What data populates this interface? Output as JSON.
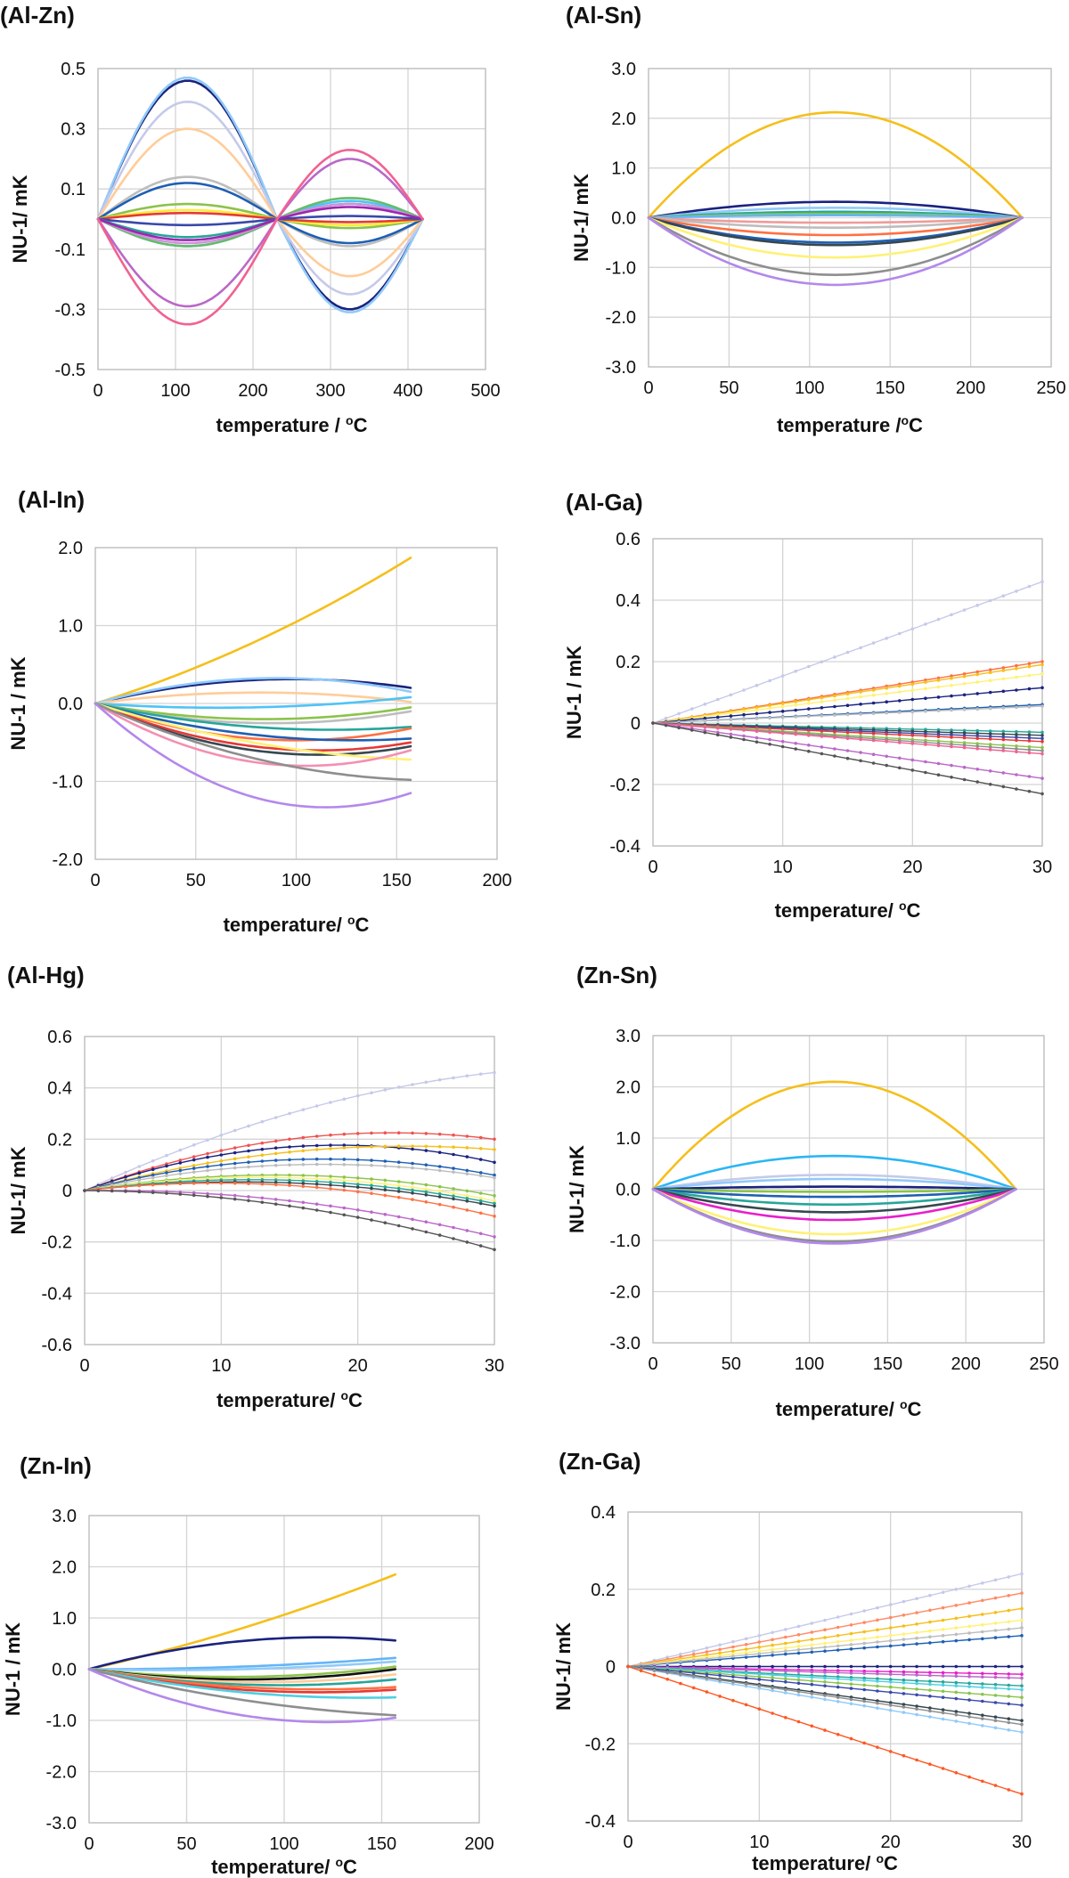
{
  "chart_data": [
    {
      "type": "line",
      "title": "(Al-Zn)",
      "xlabel": "temperature / ",
      "xlabel_unit": "C",
      "ylabel": "NU-1/ mK",
      "xlim": [
        0,
        500
      ],
      "ylim": [
        -0.5,
        0.5
      ],
      "xticks": [
        0,
        100,
        200,
        300,
        400,
        500
      ],
      "yticks": [
        -0.5,
        -0.3,
        -0.1,
        0.1,
        0.3,
        0.5
      ],
      "xtick_labels": [
        "0",
        "100",
        "200",
        "300",
        "400",
        "500"
      ],
      "ytick_labels": [
        "-0.5",
        "-0.3",
        "-0.1",
        "0.1",
        "0.3",
        "0.5"
      ],
      "shape": "double",
      "x_end": 419,
      "x_mid": 231,
      "series": [
        {
          "name": "s1",
          "color": "#1a237e",
          "peak1": 0.46,
          "peak2": -0.3
        },
        {
          "name": "s2",
          "color": "#90caf9",
          "peak1": 0.47,
          "peak2": -0.31
        },
        {
          "name": "s3",
          "color": "#c5cae9",
          "peak1": 0.39,
          "peak2": -0.25
        },
        {
          "name": "s4",
          "color": "#ffcc99",
          "peak1": 0.3,
          "peak2": -0.19
        },
        {
          "name": "s5",
          "color": "#bdbdbd",
          "peak1": 0.14,
          "peak2": -0.09
        },
        {
          "name": "s6",
          "color": "#1e5fb3",
          "peak1": 0.12,
          "peak2": -0.08
        },
        {
          "name": "s7",
          "color": "#8bc34a",
          "peak1": 0.05,
          "peak2": -0.03
        },
        {
          "name": "s8",
          "color": "#ffeb3b",
          "peak1": 0.03,
          "peak2": -0.02
        },
        {
          "name": "s9",
          "color": "#e53935",
          "peak1": 0.02,
          "peak2": -0.01
        },
        {
          "name": "s10",
          "color": "#3949ab",
          "peak1": -0.02,
          "peak2": 0.01
        },
        {
          "name": "s11",
          "color": "#26a69a",
          "peak1": -0.06,
          "peak2": 0.05
        },
        {
          "name": "s12",
          "color": "#4fc3f7",
          "peak1": -0.09,
          "peak2": 0.06
        },
        {
          "name": "s13",
          "color": "#66bb6a",
          "peak1": -0.09,
          "peak2": 0.07
        },
        {
          "name": "s14",
          "color": "#ce93d8",
          "peak1": -0.08,
          "peak2": 0.05
        },
        {
          "name": "s15",
          "color": "#9c27b0",
          "peak1": -0.07,
          "peak2": 0.04
        },
        {
          "name": "s16",
          "color": "#ba68c8",
          "peak1": -0.29,
          "peak2": 0.2
        },
        {
          "name": "s17",
          "color": "#f06292",
          "peak1": -0.35,
          "peak2": 0.23
        }
      ]
    },
    {
      "type": "line",
      "title": "(Al-Sn)",
      "xlabel": "temperature /",
      "xlabel_unit": "C",
      "ylabel": "NU-1/ mK",
      "xlim": [
        0,
        250
      ],
      "ylim": [
        -3.0,
        3.0
      ],
      "xticks": [
        0,
        50,
        100,
        150,
        200,
        250
      ],
      "yticks": [
        -3,
        -2,
        -1,
        0,
        1,
        2,
        3
      ],
      "xtick_labels": [
        "0",
        "50",
        "100",
        "150",
        "200",
        "250"
      ],
      "ytick_labels": [
        "-3.0",
        "-2.0",
        "-1.0",
        "0.0",
        "1.0",
        "2.0",
        "3.0"
      ],
      "shape": "arch",
      "x_end": 232,
      "series": [
        {
          "name": "s1",
          "color": "#f5bf1b",
          "peak": 2.12
        },
        {
          "name": "s2",
          "color": "#1a237e",
          "peak": 0.32
        },
        {
          "name": "s3",
          "color": "#90caf9",
          "peak": 0.2
        },
        {
          "name": "s4",
          "color": "#26a69a",
          "peak": 0.12
        },
        {
          "name": "s5",
          "color": "#8bc34a",
          "peak": 0.08
        },
        {
          "name": "s6",
          "color": "#64b5f6",
          "peak": 0.05
        },
        {
          "name": "s7",
          "color": "#ef9a9a",
          "peak": -0.1
        },
        {
          "name": "s8",
          "color": "#bdbdbd",
          "peak": -0.2
        },
        {
          "name": "s9",
          "color": "#ff7043",
          "peak": -0.35
        },
        {
          "name": "s10",
          "color": "#1e5fb3",
          "peak": -0.5
        },
        {
          "name": "s11",
          "color": "#37474f",
          "peak": -0.55
        },
        {
          "name": "s12",
          "color": "#fff176",
          "peak": -0.8
        },
        {
          "name": "s13",
          "color": "#8e8e8e",
          "peak": -1.15
        },
        {
          "name": "s14",
          "color": "#b388eb",
          "peak": -1.35
        }
      ]
    },
    {
      "type": "line",
      "title": "(Al-In)",
      "xlabel": "temperature/ ",
      "xlabel_unit": "C",
      "ylabel": "NU-1 / mK",
      "xlim": [
        0,
        200
      ],
      "ylim": [
        -2.0,
        2.0
      ],
      "xticks": [
        0,
        50,
        100,
        150,
        200
      ],
      "yticks": [
        -2,
        -1,
        0,
        1,
        2
      ],
      "xtick_labels": [
        "0",
        "50",
        "100",
        "150",
        "200"
      ],
      "ytick_labels": [
        "-2.0",
        "-1.0",
        "0.0",
        "1.0",
        "2.0"
      ],
      "shape": "quad",
      "x_end": 157,
      "series": [
        {
          "name": "s1",
          "color": "#f5bf1b",
          "end": 1.87,
          "mid": 0.78
        },
        {
          "name": "s2",
          "color": "#1a237e",
          "end": 0.2,
          "mid": 0.3
        },
        {
          "name": "s3",
          "color": "#90caf9",
          "end": 0.15,
          "mid": 0.32
        },
        {
          "name": "s4",
          "color": "#ffcc99",
          "end": 0.02,
          "mid": 0.14
        },
        {
          "name": "s5",
          "color": "#4fc3f7",
          "end": 0.08,
          "mid": -0.05
        },
        {
          "name": "s6",
          "color": "#8bc34a",
          "end": -0.05,
          "mid": -0.2
        },
        {
          "name": "s7",
          "color": "#bdbdbd",
          "end": -0.1,
          "mid": -0.25
        },
        {
          "name": "s8",
          "color": "#26a69a",
          "end": -0.3,
          "mid": -0.3
        },
        {
          "name": "s9",
          "color": "#ff7043",
          "end": -0.32,
          "mid": -0.45
        },
        {
          "name": "s10",
          "color": "#1e5fb3",
          "end": -0.45,
          "mid": -0.4
        },
        {
          "name": "s11",
          "color": "#e53935",
          "end": -0.5,
          "mid": -0.55
        },
        {
          "name": "s12",
          "color": "#37474f",
          "end": -0.55,
          "mid": -0.6
        },
        {
          "name": "s13",
          "color": "#fff176",
          "end": -0.72,
          "mid": -0.5
        },
        {
          "name": "s14",
          "color": "#f48fb1",
          "end": -0.6,
          "mid": -0.75
        },
        {
          "name": "s15",
          "color": "#8e8e8e",
          "end": -0.98,
          "mid": -0.7
        },
        {
          "name": "s16",
          "color": "#b388eb",
          "end": -1.15,
          "mid": -1.2
        }
      ]
    },
    {
      "type": "line",
      "title": "(Al-Ga)",
      "xlabel": "temperature/ ",
      "xlabel_unit": "C",
      "ylabel": "NU-1 / mK",
      "xlim": [
        0,
        30
      ],
      "ylim": [
        -0.4,
        0.6
      ],
      "xticks": [
        0,
        10,
        20,
        30
      ],
      "yticks": [
        -0.4,
        -0.2,
        0,
        0.2,
        0.4,
        0.6
      ],
      "xtick_labels": [
        "0",
        "10",
        "20",
        "30"
      ],
      "ytick_labels": [
        "-0.4",
        "-0.2",
        "0",
        "0.2",
        "0.4",
        "0.6"
      ],
      "shape": "linear",
      "x_end": 30,
      "dotted": true,
      "series": [
        {
          "name": "s1",
          "color": "#c5cae9",
          "end": 0.46
        },
        {
          "name": "s2",
          "color": "#ff7043",
          "end": 0.2
        },
        {
          "name": "s3",
          "color": "#f5bf1b",
          "end": 0.19
        },
        {
          "name": "s4",
          "color": "#fff176",
          "end": 0.16
        },
        {
          "name": "s5",
          "color": "#1a237e",
          "end": 0.115
        },
        {
          "name": "s6",
          "color": "#1e5fb3",
          "end": 0.06
        },
        {
          "name": "s7",
          "color": "#bdbdbd",
          "end": 0.055
        },
        {
          "name": "s8",
          "color": "#26a69a",
          "end": -0.03
        },
        {
          "name": "s9",
          "color": "#37474f",
          "end": -0.04
        },
        {
          "name": "s10",
          "color": "#3949ab",
          "end": -0.05
        },
        {
          "name": "s11",
          "color": "#e53935",
          "end": -0.06
        },
        {
          "name": "s12",
          "color": "#8bc34a",
          "end": -0.08
        },
        {
          "name": "s13",
          "color": "#8e8e8e",
          "end": -0.09
        },
        {
          "name": "s14",
          "color": "#f06292",
          "end": -0.1
        },
        {
          "name": "s15",
          "color": "#ba68c8",
          "end": -0.18
        },
        {
          "name": "s16",
          "color": "#555555",
          "end": -0.23
        }
      ]
    },
    {
      "type": "line",
      "title": "(Al-Hg)",
      "xlabel": "temperature/ ",
      "xlabel_unit": "C",
      "ylabel": "NU-1/ mK",
      "xlim": [
        0,
        30
      ],
      "ylim": [
        -0.6,
        0.6
      ],
      "xticks": [
        0,
        10,
        20,
        30
      ],
      "yticks": [
        -0.6,
        -0.4,
        -0.2,
        0,
        0.2,
        0.4,
        0.6
      ],
      "xtick_labels": [
        "0",
        "10",
        "20",
        "30"
      ],
      "ytick_labels": [
        "-0.6",
        "-0.4",
        "-0.2",
        "0",
        "0.2",
        "0.4",
        "0.6"
      ],
      "shape": "quad",
      "x_end": 30,
      "dotted": true,
      "series": [
        {
          "name": "s1",
          "color": "#c5cae9",
          "end": 0.46,
          "mid": 0.3
        },
        {
          "name": "s2",
          "color": "#ef5350",
          "end": 0.2,
          "mid": 0.2
        },
        {
          "name": "s3",
          "color": "#1a237e",
          "end": 0.11,
          "mid": 0.17
        },
        {
          "name": "s4",
          "color": "#f5bf1b",
          "end": 0.16,
          "mid": 0.15
        },
        {
          "name": "s5",
          "color": "#1e5fb3",
          "end": 0.06,
          "mid": 0.12
        },
        {
          "name": "s6",
          "color": "#bdbdbd",
          "end": 0.05,
          "mid": 0.1
        },
        {
          "name": "s7",
          "color": "#8bc34a",
          "end": -0.02,
          "mid": 0.06
        },
        {
          "name": "s8",
          "color": "#fff176",
          "end": -0.04,
          "mid": 0.05
        },
        {
          "name": "s9",
          "color": "#26a69a",
          "end": -0.05,
          "mid": 0.04
        },
        {
          "name": "s10",
          "color": "#37474f",
          "end": -0.06,
          "mid": 0.03
        },
        {
          "name": "s11",
          "color": "#ff7043",
          "end": -0.1,
          "mid": 0.02
        },
        {
          "name": "s12",
          "color": "#ba68c8",
          "end": -0.18,
          "mid": -0.04
        },
        {
          "name": "s13",
          "color": "#555555",
          "end": -0.23,
          "mid": -0.06
        }
      ]
    },
    {
      "type": "line",
      "title": "(Zn-Sn)",
      "xlabel": "temperature/ ",
      "xlabel_unit": "C",
      "ylabel": "NU-1/ mK",
      "xlim": [
        0,
        250
      ],
      "ylim": [
        -3.0,
        3.0
      ],
      "xticks": [
        0,
        50,
        100,
        150,
        200,
        250
      ],
      "yticks": [
        -3,
        -2,
        -1,
        0,
        1,
        2,
        3
      ],
      "xtick_labels": [
        "0",
        "50",
        "100",
        "150",
        "200",
        "250"
      ],
      "ytick_labels": [
        "-3.0",
        "-2.0",
        "-1.0",
        "0.0",
        "1.0",
        "2.0",
        "3.0"
      ],
      "shape": "arch",
      "x_end": 232,
      "series": [
        {
          "name": "s1",
          "color": "#f5bf1b",
          "peak": 2.1
        },
        {
          "name": "s2",
          "color": "#29b6f6",
          "peak": 0.65
        },
        {
          "name": "s3",
          "color": "#c5cae9",
          "peak": 0.28
        },
        {
          "name": "s4",
          "color": "#90caf9",
          "peak": 0.2
        },
        {
          "name": "s5",
          "color": "#1a237e",
          "peak": 0.05
        },
        {
          "name": "s6",
          "color": "#8bc34a",
          "peak": -0.05
        },
        {
          "name": "s7",
          "color": "#1e5fb3",
          "peak": -0.15
        },
        {
          "name": "s8",
          "color": "#26a69a",
          "peak": -0.3
        },
        {
          "name": "s9",
          "color": "#37474f",
          "peak": -0.45
        },
        {
          "name": "s10",
          "color": "#e91ecc",
          "peak": -0.6
        },
        {
          "name": "s11",
          "color": "#fff176",
          "peak": -0.88
        },
        {
          "name": "s12",
          "color": "#8e8e8e",
          "peak": -1.02
        },
        {
          "name": "s13",
          "color": "#b388eb",
          "peak": -1.06
        }
      ]
    },
    {
      "type": "line",
      "title": "(Zn-In)",
      "xlabel": "temperature/ ",
      "xlabel_unit": "C",
      "ylabel": "NU-1 / mK",
      "xlim": [
        0,
        200
      ],
      "ylim": [
        -3.0,
        3.0
      ],
      "xticks": [
        0,
        50,
        100,
        150,
        200
      ],
      "yticks": [
        -3,
        -2,
        -1,
        0,
        1,
        2,
        3
      ],
      "xtick_labels": [
        "0",
        "50",
        "100",
        "150",
        "200"
      ],
      "ytick_labels": [
        "-3.0",
        "-2.0",
        "-1.0",
        "0.0",
        "1.0",
        "2.0",
        "3.0"
      ],
      "shape": "quad",
      "x_end": 157,
      "series": [
        {
          "name": "s1",
          "color": "#f5bf1b",
          "end": 1.85,
          "mid": 0.8
        },
        {
          "name": "s2",
          "color": "#1a237e",
          "end": 0.56,
          "mid": 0.55
        },
        {
          "name": "s3",
          "color": "#64b5f6",
          "end": 0.22,
          "mid": 0.05
        },
        {
          "name": "s4",
          "color": "#90caf9",
          "end": 0.15,
          "mid": 0.0
        },
        {
          "name": "s5",
          "color": "#8bc34a",
          "end": 0.05,
          "mid": -0.15
        },
        {
          "name": "s6",
          "color": "#111111",
          "end": 0.0,
          "mid": -0.2
        },
        {
          "name": "s7",
          "color": "#ffcc99",
          "end": -0.1,
          "mid": -0.25
        },
        {
          "name": "s8",
          "color": "#26a69a",
          "end": -0.2,
          "mid": -0.3
        },
        {
          "name": "s9",
          "color": "#ff7043",
          "end": -0.35,
          "mid": -0.35
        },
        {
          "name": "s10",
          "color": "#e53935",
          "end": -0.4,
          "mid": -0.4
        },
        {
          "name": "s11",
          "color": "#4dd0e1",
          "end": -0.55,
          "mid": -0.45
        },
        {
          "name": "s12",
          "color": "#8e8e8e",
          "end": -0.9,
          "mid": -0.6
        },
        {
          "name": "s13",
          "color": "#b388eb",
          "end": -0.95,
          "mid": -0.9
        }
      ]
    },
    {
      "type": "line",
      "title": "(Zn-Ga)",
      "xlabel": "temperature/ ",
      "xlabel_unit": "C",
      "ylabel": "NU-1/ mK",
      "xlim": [
        0,
        30
      ],
      "ylim": [
        -0.4,
        0.4
      ],
      "xticks": [
        0,
        10,
        20,
        30
      ],
      "yticks": [
        -0.4,
        -0.2,
        0,
        0.2,
        0.4
      ],
      "xtick_labels": [
        "0",
        "10",
        "20",
        "30"
      ],
      "ytick_labels": [
        "-0.4",
        "-0.2",
        "0",
        "0.2",
        "0.4"
      ],
      "shape": "linear",
      "x_end": 30,
      "dotted": true,
      "series": [
        {
          "name": "s1",
          "color": "#c5cae9",
          "end": 0.24
        },
        {
          "name": "s2",
          "color": "#ff8a65",
          "end": 0.19
        },
        {
          "name": "s3",
          "color": "#f5bf1b",
          "end": 0.15
        },
        {
          "name": "s4",
          "color": "#fff176",
          "end": 0.12
        },
        {
          "name": "s5",
          "color": "#1e5fb3",
          "end": 0.08
        },
        {
          "name": "s6",
          "color": "#bdbdbd",
          "end": 0.1
        },
        {
          "name": "s7",
          "color": "#1a237e",
          "end": 0.0
        },
        {
          "name": "s8",
          "color": "#e91ecc",
          "end": -0.02
        },
        {
          "name": "s9",
          "color": "#ba68c8",
          "end": -0.03
        },
        {
          "name": "s10",
          "color": "#26a69a",
          "end": -0.05
        },
        {
          "name": "s11",
          "color": "#4dd0e1",
          "end": -0.06
        },
        {
          "name": "s12",
          "color": "#8bc34a",
          "end": -0.08
        },
        {
          "name": "s13",
          "color": "#3949ab",
          "end": -0.1
        },
        {
          "name": "s14",
          "color": "#37474f",
          "end": -0.14
        },
        {
          "name": "s15",
          "color": "#90caf9",
          "end": -0.17
        },
        {
          "name": "s16",
          "color": "#8e8e8e",
          "end": -0.15
        },
        {
          "name": "s17",
          "color": "#ff5722",
          "end": -0.33
        }
      ]
    }
  ]
}
